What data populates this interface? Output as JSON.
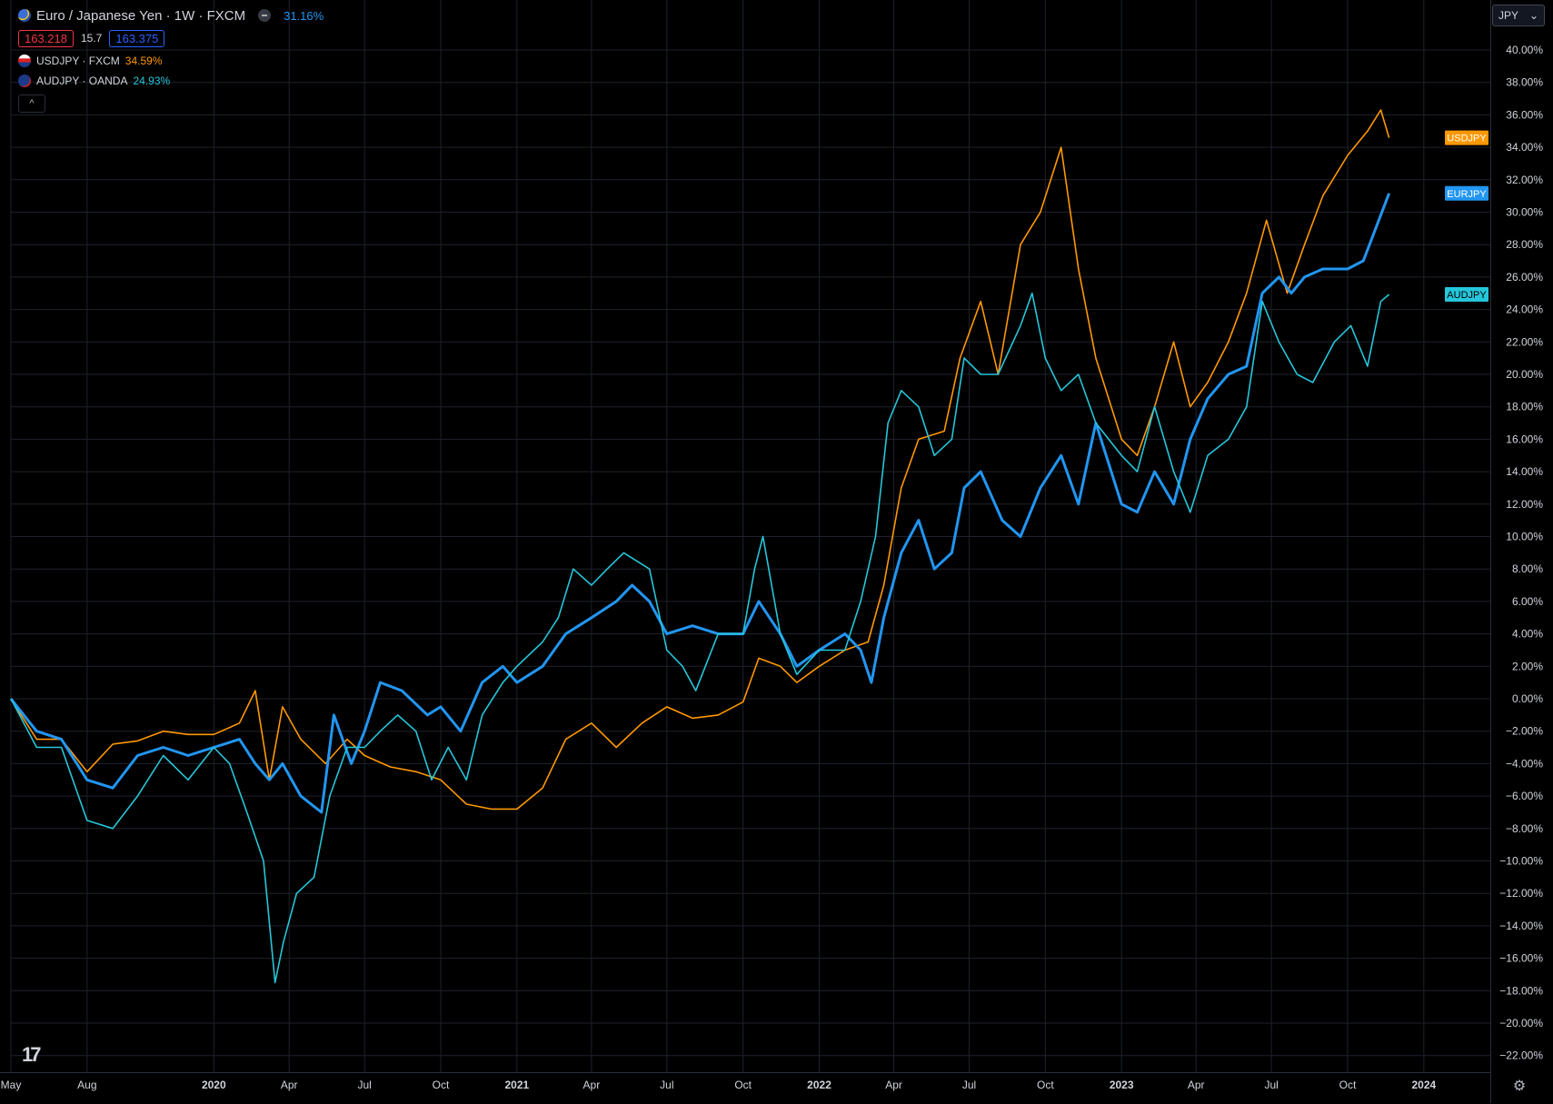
{
  "legend": {
    "main_title": "Euro / Japanese Yen · 1W · FXCM",
    "main_change": "31.16%",
    "bid": "163.218",
    "spread": "15.7",
    "ask": "163.375",
    "compare": [
      {
        "label": "USDJPY · FXCM",
        "change": "34.59%"
      },
      {
        "label": "AUDJPY · OANDA",
        "change": "24.93%"
      }
    ],
    "collapse_glyph": "^"
  },
  "axis": {
    "currency": "JPY",
    "currency_caret": "⌄"
  },
  "logo": "17",
  "colors": {
    "EURJPY": "#2196f3",
    "USDJPY": "#ff9800",
    "AUDJPY": "#26c6da",
    "grid": "#1e222d",
    "background": "#000000"
  },
  "chart_data": {
    "type": "line",
    "title": "Euro / Japanese Yen · 1W · FXCM",
    "y_unit": "percent change",
    "ylim": [
      -23,
      42
    ],
    "y_ticks": [
      40,
      38,
      36,
      34,
      32,
      30,
      28,
      26,
      24,
      22,
      20,
      18,
      16,
      14,
      12,
      10,
      8,
      6,
      4,
      2,
      0,
      -2,
      -4,
      -6,
      -8,
      -10,
      -12,
      -14,
      -16,
      -18,
      -20,
      -22
    ],
    "y_tick_labels": [
      "40.00%",
      "38.00%",
      "36.00%",
      "34.00%",
      "32.00%",
      "30.00%",
      "28.00%",
      "26.00%",
      "24.00%",
      "22.00%",
      "20.00%",
      "18.00%",
      "16.00%",
      "14.00%",
      "12.00%",
      "10.00%",
      "8.00%",
      "6.00%",
      "4.00%",
      "2.00%",
      "0.00%",
      "−2.00%",
      "−4.00%",
      "−6.00%",
      "−8.00%",
      "−10.00%",
      "−12.00%",
      "−14.00%",
      "−16.00%",
      "−18.00%",
      "−20.00%",
      "−22.00%"
    ],
    "x_range": [
      "2019-05-01",
      "2024-01-01"
    ],
    "x_ticks": [
      {
        "date": "2019-05-01",
        "label": "May"
      },
      {
        "date": "2019-08-01",
        "label": "Aug"
      },
      {
        "date": "2020-01-01",
        "label": "2020"
      },
      {
        "date": "2020-04-01",
        "label": "Apr"
      },
      {
        "date": "2020-07-01",
        "label": "Jul"
      },
      {
        "date": "2020-10-01",
        "label": "Oct"
      },
      {
        "date": "2021-01-01",
        "label": "2021"
      },
      {
        "date": "2021-04-01",
        "label": "Apr"
      },
      {
        "date": "2021-07-01",
        "label": "Jul"
      },
      {
        "date": "2021-10-01",
        "label": "Oct"
      },
      {
        "date": "2022-01-01",
        "label": "2022"
      },
      {
        "date": "2022-04-01",
        "label": "Apr"
      },
      {
        "date": "2022-07-01",
        "label": "Jul"
      },
      {
        "date": "2022-10-01",
        "label": "Oct"
      },
      {
        "date": "2023-01-01",
        "label": "2023"
      },
      {
        "date": "2023-04-01",
        "label": "Apr"
      },
      {
        "date": "2023-07-01",
        "label": "Jul"
      },
      {
        "date": "2023-10-01",
        "label": "Oct"
      },
      {
        "date": "2024-01-01",
        "label": "2024"
      }
    ],
    "grid": true,
    "series": [
      {
        "name": "USDJPY",
        "last_value": 34.59,
        "points": [
          [
            "2019-05-01",
            0
          ],
          [
            "2019-06-01",
            -2.5
          ],
          [
            "2019-07-01",
            -2.5
          ],
          [
            "2019-08-01",
            -4.5
          ],
          [
            "2019-09-01",
            -2.8
          ],
          [
            "2019-10-01",
            -2.6
          ],
          [
            "2019-11-01",
            -2
          ],
          [
            "2019-12-01",
            -2.2
          ],
          [
            "2020-01-01",
            -2.2
          ],
          [
            "2020-02-01",
            -1.5
          ],
          [
            "2020-02-20",
            0.5
          ],
          [
            "2020-03-08",
            -5
          ],
          [
            "2020-03-24",
            -0.5
          ],
          [
            "2020-04-15",
            -2.5
          ],
          [
            "2020-05-15",
            -4
          ],
          [
            "2020-06-10",
            -2.5
          ],
          [
            "2020-07-01",
            -3.5
          ],
          [
            "2020-08-01",
            -4.2
          ],
          [
            "2020-09-01",
            -4.5
          ],
          [
            "2020-10-01",
            -5
          ],
          [
            "2020-11-01",
            -6.5
          ],
          [
            "2020-12-01",
            -6.8
          ],
          [
            "2021-01-01",
            -6.8
          ],
          [
            "2021-02-01",
            -5.5
          ],
          [
            "2021-03-01",
            -2.5
          ],
          [
            "2021-04-01",
            -1.5
          ],
          [
            "2021-05-01",
            -3
          ],
          [
            "2021-06-01",
            -1.5
          ],
          [
            "2021-07-01",
            -0.5
          ],
          [
            "2021-08-01",
            -1.2
          ],
          [
            "2021-09-01",
            -1
          ],
          [
            "2021-10-01",
            -0.2
          ],
          [
            "2021-10-20",
            2.5
          ],
          [
            "2021-11-15",
            2
          ],
          [
            "2021-12-05",
            1
          ],
          [
            "2022-01-01",
            2
          ],
          [
            "2022-02-01",
            3
          ],
          [
            "2022-03-01",
            3.5
          ],
          [
            "2022-03-20",
            7
          ],
          [
            "2022-04-10",
            13
          ],
          [
            "2022-05-01",
            16
          ],
          [
            "2022-06-01",
            16.5
          ],
          [
            "2022-06-20",
            21
          ],
          [
            "2022-07-15",
            24.5
          ],
          [
            "2022-08-05",
            20
          ],
          [
            "2022-09-01",
            28
          ],
          [
            "2022-09-25",
            30
          ],
          [
            "2022-10-20",
            34
          ],
          [
            "2022-11-10",
            26.5
          ],
          [
            "2022-12-01",
            21
          ],
          [
            "2023-01-01",
            16
          ],
          [
            "2023-01-20",
            15
          ],
          [
            "2023-02-10",
            18
          ],
          [
            "2023-03-05",
            22
          ],
          [
            "2023-03-25",
            18
          ],
          [
            "2023-04-15",
            19.5
          ],
          [
            "2023-05-10",
            22
          ],
          [
            "2023-06-01",
            25
          ],
          [
            "2023-06-25",
            29.5
          ],
          [
            "2023-07-20",
            25
          ],
          [
            "2023-08-10",
            28
          ],
          [
            "2023-09-01",
            31
          ],
          [
            "2023-10-01",
            33.5
          ],
          [
            "2023-10-25",
            35
          ],
          [
            "2023-11-10",
            36.3
          ],
          [
            "2023-11-20",
            34.59
          ]
        ]
      },
      {
        "name": "EURJPY",
        "last_value": 31.16,
        "points": [
          [
            "2019-05-01",
            0
          ],
          [
            "2019-06-01",
            -2
          ],
          [
            "2019-07-01",
            -2.5
          ],
          [
            "2019-08-01",
            -5
          ],
          [
            "2019-09-01",
            -5.5
          ],
          [
            "2019-10-01",
            -3.5
          ],
          [
            "2019-11-01",
            -3
          ],
          [
            "2019-12-01",
            -3.5
          ],
          [
            "2020-01-01",
            -3
          ],
          [
            "2020-02-01",
            -2.5
          ],
          [
            "2020-02-20",
            -4
          ],
          [
            "2020-03-08",
            -5
          ],
          [
            "2020-03-24",
            -4
          ],
          [
            "2020-04-15",
            -6
          ],
          [
            "2020-05-10",
            -7
          ],
          [
            "2020-05-25",
            -1
          ],
          [
            "2020-06-15",
            -4
          ],
          [
            "2020-07-01",
            -2
          ],
          [
            "2020-07-20",
            1
          ],
          [
            "2020-08-15",
            0.5
          ],
          [
            "2020-09-15",
            -1
          ],
          [
            "2020-10-01",
            -0.5
          ],
          [
            "2020-10-25",
            -2
          ],
          [
            "2020-11-20",
            1
          ],
          [
            "2020-12-15",
            2
          ],
          [
            "2021-01-01",
            1
          ],
          [
            "2021-02-01",
            2
          ],
          [
            "2021-03-01",
            4
          ],
          [
            "2021-04-01",
            5
          ],
          [
            "2021-05-01",
            6
          ],
          [
            "2021-05-20",
            7
          ],
          [
            "2021-06-10",
            6
          ],
          [
            "2021-07-01",
            4
          ],
          [
            "2021-08-01",
            4.5
          ],
          [
            "2021-09-01",
            4
          ],
          [
            "2021-10-01",
            4
          ],
          [
            "2021-10-20",
            6
          ],
          [
            "2021-11-15",
            4
          ],
          [
            "2021-12-05",
            2
          ],
          [
            "2022-01-01",
            3
          ],
          [
            "2022-02-01",
            4
          ],
          [
            "2022-02-20",
            3
          ],
          [
            "2022-03-05",
            1
          ],
          [
            "2022-03-20",
            5
          ],
          [
            "2022-04-10",
            9
          ],
          [
            "2022-05-01",
            11
          ],
          [
            "2022-05-20",
            8
          ],
          [
            "2022-06-10",
            9
          ],
          [
            "2022-06-25",
            13
          ],
          [
            "2022-07-15",
            14
          ],
          [
            "2022-08-10",
            11
          ],
          [
            "2022-09-01",
            10
          ],
          [
            "2022-09-25",
            13
          ],
          [
            "2022-10-20",
            15
          ],
          [
            "2022-11-10",
            12
          ],
          [
            "2022-12-01",
            17
          ],
          [
            "2023-01-01",
            12
          ],
          [
            "2023-01-20",
            11.5
          ],
          [
            "2023-02-10",
            14
          ],
          [
            "2023-03-05",
            12
          ],
          [
            "2023-03-25",
            16
          ],
          [
            "2023-04-15",
            18.5
          ],
          [
            "2023-05-10",
            20
          ],
          [
            "2023-06-01",
            20.5
          ],
          [
            "2023-06-20",
            25
          ],
          [
            "2023-07-10",
            26
          ],
          [
            "2023-07-25",
            25
          ],
          [
            "2023-08-10",
            26
          ],
          [
            "2023-09-01",
            26.5
          ],
          [
            "2023-10-01",
            26.5
          ],
          [
            "2023-10-20",
            27
          ],
          [
            "2023-11-20",
            31.16
          ]
        ]
      },
      {
        "name": "AUDJPY",
        "last_value": 24.93,
        "points": [
          [
            "2019-05-01",
            0
          ],
          [
            "2019-06-01",
            -3
          ],
          [
            "2019-07-01",
            -3
          ],
          [
            "2019-08-01",
            -7.5
          ],
          [
            "2019-09-01",
            -8
          ],
          [
            "2019-10-01",
            -6
          ],
          [
            "2019-11-01",
            -3.5
          ],
          [
            "2019-12-01",
            -5
          ],
          [
            "2020-01-01",
            -3
          ],
          [
            "2020-01-20",
            -4
          ],
          [
            "2020-02-10",
            -7
          ],
          [
            "2020-03-01",
            -10
          ],
          [
            "2020-03-15",
            -17.5
          ],
          [
            "2020-03-25",
            -15
          ],
          [
            "2020-04-10",
            -12
          ],
          [
            "2020-05-01",
            -11
          ],
          [
            "2020-05-20",
            -6
          ],
          [
            "2020-06-10",
            -3
          ],
          [
            "2020-07-01",
            -3
          ],
          [
            "2020-07-20",
            -2
          ],
          [
            "2020-08-10",
            -1
          ],
          [
            "2020-09-01",
            -2
          ],
          [
            "2020-09-20",
            -5
          ],
          [
            "2020-10-10",
            -3
          ],
          [
            "2020-11-01",
            -5
          ],
          [
            "2020-11-20",
            -1
          ],
          [
            "2020-12-15",
            1
          ],
          [
            "2021-01-01",
            2
          ],
          [
            "2021-02-01",
            3.5
          ],
          [
            "2021-02-20",
            5
          ],
          [
            "2021-03-10",
            8
          ],
          [
            "2021-04-01",
            7
          ],
          [
            "2021-04-20",
            8
          ],
          [
            "2021-05-10",
            9
          ],
          [
            "2021-06-10",
            8
          ],
          [
            "2021-07-01",
            3
          ],
          [
            "2021-07-20",
            2
          ],
          [
            "2021-08-05",
            0.5
          ],
          [
            "2021-09-01",
            4
          ],
          [
            "2021-10-01",
            4
          ],
          [
            "2021-10-15",
            8
          ],
          [
            "2021-10-25",
            10
          ],
          [
            "2021-11-15",
            4
          ],
          [
            "2021-12-05",
            1.5
          ],
          [
            "2022-01-01",
            3
          ],
          [
            "2022-02-01",
            3
          ],
          [
            "2022-02-20",
            6
          ],
          [
            "2022-03-10",
            10
          ],
          [
            "2022-03-25",
            17
          ],
          [
            "2022-04-10",
            19
          ],
          [
            "2022-05-01",
            18
          ],
          [
            "2022-05-20",
            15
          ],
          [
            "2022-06-10",
            16
          ],
          [
            "2022-06-25",
            21
          ],
          [
            "2022-07-15",
            20
          ],
          [
            "2022-08-05",
            20
          ],
          [
            "2022-09-01",
            23
          ],
          [
            "2022-09-15",
            25
          ],
          [
            "2022-10-01",
            21
          ],
          [
            "2022-10-20",
            19
          ],
          [
            "2022-11-10",
            20
          ],
          [
            "2022-12-01",
            17
          ],
          [
            "2023-01-01",
            15
          ],
          [
            "2023-01-20",
            14
          ],
          [
            "2023-02-10",
            18
          ],
          [
            "2023-03-05",
            14
          ],
          [
            "2023-03-25",
            11.5
          ],
          [
            "2023-04-15",
            15
          ],
          [
            "2023-05-10",
            16
          ],
          [
            "2023-06-01",
            18
          ],
          [
            "2023-06-20",
            24.5
          ],
          [
            "2023-07-10",
            22
          ],
          [
            "2023-08-01",
            20
          ],
          [
            "2023-08-20",
            19.5
          ],
          [
            "2023-09-15",
            22
          ],
          [
            "2023-10-05",
            23
          ],
          [
            "2023-10-25",
            20.5
          ],
          [
            "2023-11-10",
            24.5
          ],
          [
            "2023-11-20",
            24.93
          ]
        ]
      }
    ]
  }
}
